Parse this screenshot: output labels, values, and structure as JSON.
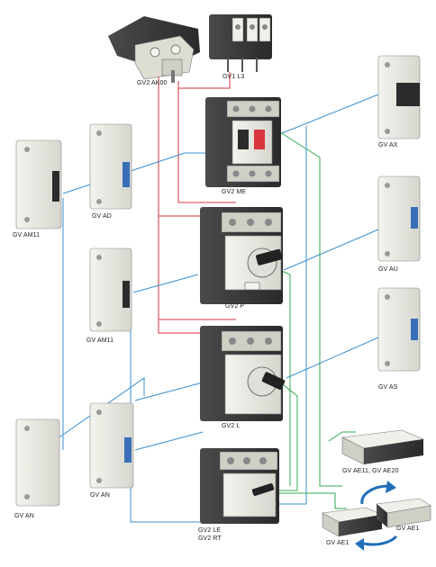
{
  "colors": {
    "red": "#d9363e",
    "blue": "#3a8fd0",
    "green": "#2fa84f",
    "device_body": "#e9e9e2",
    "device_dark": "#3a3a3a",
    "arrow": "#1f6fb8"
  },
  "labels": {
    "gv2ak00": "GV2 AK00",
    "gv1l3": "GV1 L3",
    "gv2me": "GV2 ME",
    "gv2p": "GV2 P",
    "gv2l": "GV2 L",
    "gv2le": "GV2 LE",
    "gv2rt": "GV2 RT",
    "gvax": "GV AX",
    "gvau": "GV AU",
    "gvas": "GV AS",
    "gvam11_left": "GV AM11",
    "gvad": "GV AD",
    "gvam11_mid": "GV AM11",
    "gvan_left": "GV AN",
    "gvan_mid": "GV AN",
    "gvae11_20": "GV AE11, GV AE20",
    "gvae1_left": "GV AE1",
    "gvae1_right": "GV AE1"
  }
}
